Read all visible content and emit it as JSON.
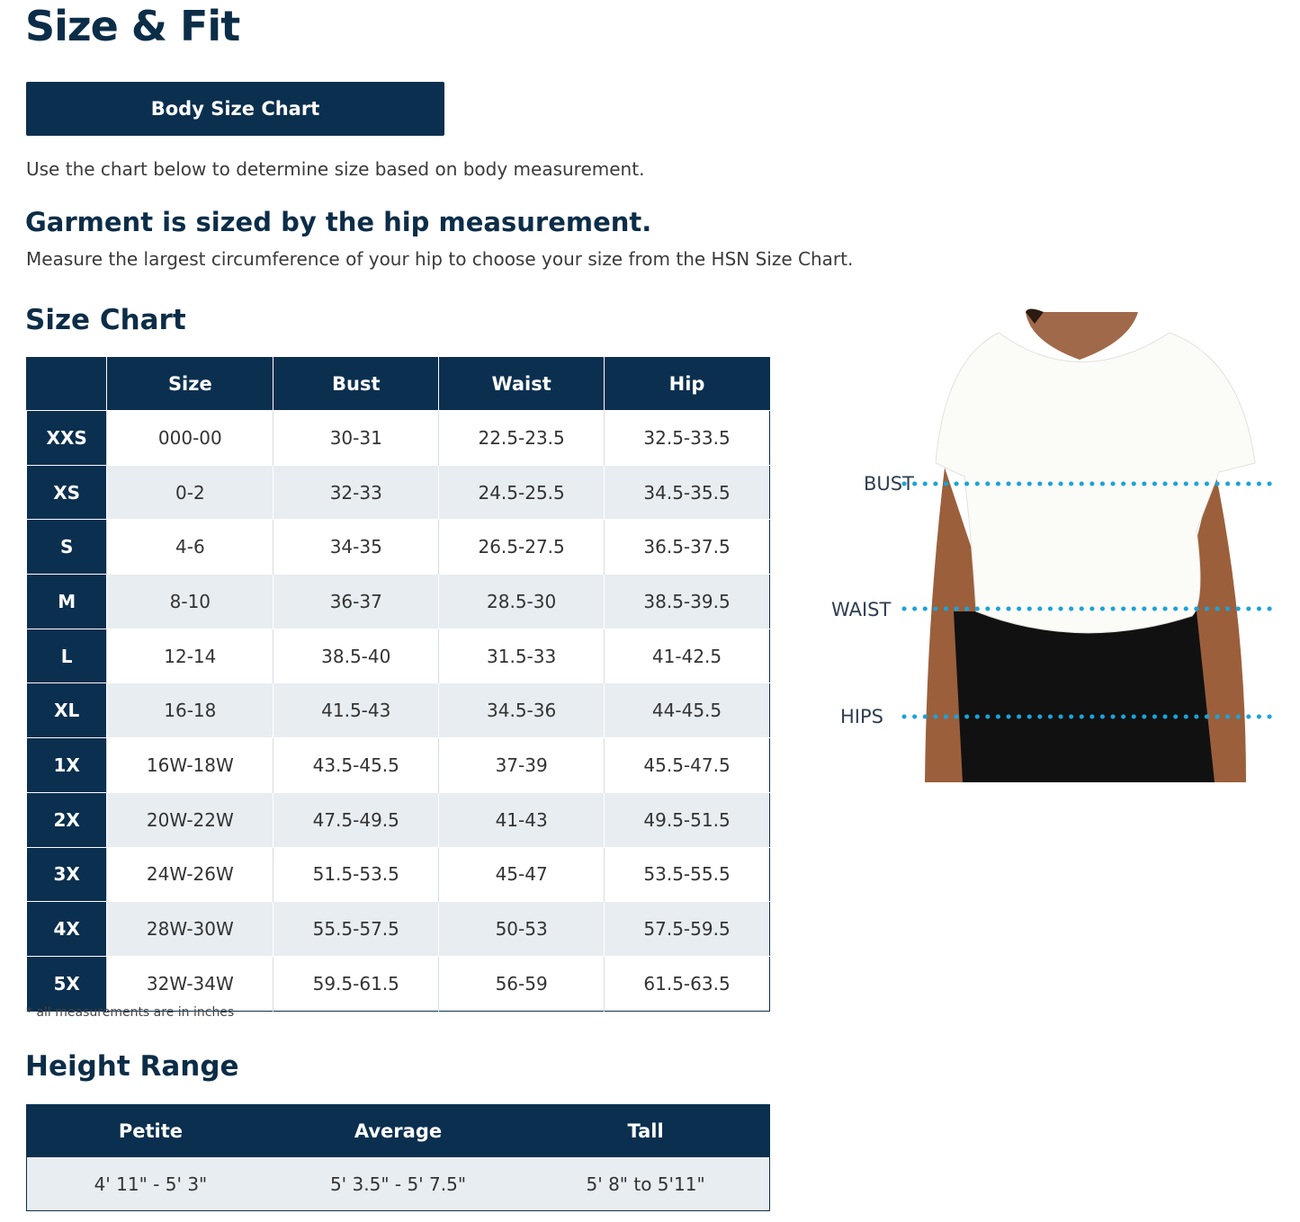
{
  "page": {
    "title": "Size & Fit",
    "body_size_chart_button": "Body Size Chart",
    "intro": "Use the chart below to determine size based on body measurement.",
    "garment_heading": "Garment is sized by the hip measurement.",
    "measure_text": "Measure the largest circumference of your hip to choose your size from the HSN Size Chart."
  },
  "size_chart": {
    "heading": "Size Chart",
    "columns": [
      "",
      "Size",
      "Bust",
      "Waist",
      "Hip"
    ],
    "rows": [
      [
        "XXS",
        "000-00",
        "30-31",
        "22.5-23.5",
        "32.5-33.5"
      ],
      [
        "XS",
        "0-2",
        "32-33",
        "24.5-25.5",
        "34.5-35.5"
      ],
      [
        "S",
        "4-6",
        "34-35",
        "26.5-27.5",
        "36.5-37.5"
      ],
      [
        "M",
        "8-10",
        "36-37",
        "28.5-30",
        "38.5-39.5"
      ],
      [
        "L",
        "12-14",
        "38.5-40",
        "31.5-33",
        "41-42.5"
      ],
      [
        "XL",
        "16-18",
        "41.5-43",
        "34.5-36",
        "44-45.5"
      ],
      [
        "1X",
        "16W-18W",
        "43.5-45.5",
        "37-39",
        "45.5-47.5"
      ],
      [
        "2X",
        "20W-22W",
        "47.5-49.5",
        "41-43",
        "49.5-51.5"
      ],
      [
        "3X",
        "24W-26W",
        "51.5-53.5",
        "45-47",
        "53.5-55.5"
      ],
      [
        "4X",
        "28W-30W",
        "55.5-57.5",
        "50-53",
        "57.5-59.5"
      ],
      [
        "5X",
        "32W-34W",
        "59.5-61.5",
        "56-59",
        "61.5-63.5"
      ]
    ],
    "note": "* all measurements are in inches"
  },
  "height_range": {
    "heading": "Height Range",
    "columns": [
      "Petite",
      "Average",
      "Tall"
    ],
    "values": [
      "4' 11\" - 5' 3\"",
      "5' 3.5\" - 5' 7.5\"",
      "5' 8\" to 5'11\""
    ]
  },
  "figure": {
    "labels": {
      "bust": "BUST",
      "waist": "WAIST",
      "hips": "HIPS"
    },
    "dot_color": "#1aa3d9"
  },
  "colors": {
    "navy": "#0b2f4f",
    "stripe": "#e8edf1"
  }
}
